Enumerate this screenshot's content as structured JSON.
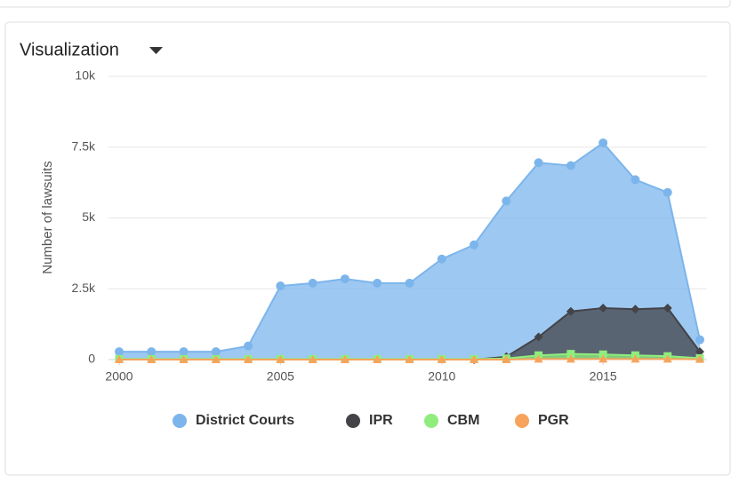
{
  "header": {
    "title": "Visualization"
  },
  "chart_data": {
    "type": "area",
    "y_label": "Number of lawsuits",
    "x": [
      2000,
      2001,
      2002,
      2003,
      2004,
      2005,
      2006,
      2007,
      2008,
      2009,
      2010,
      2011,
      2012,
      2013,
      2014,
      2015,
      2016,
      2017,
      2018
    ],
    "series": [
      {
        "name": "District Courts",
        "color": "#7cb5ec",
        "marker": "circle",
        "values": [
          280,
          280,
          280,
          280,
          480,
          2600,
          2700,
          2850,
          2700,
          2700,
          3550,
          4050,
          5600,
          6950,
          6850,
          7650,
          6350,
          5900,
          700
        ]
      },
      {
        "name": "IPR",
        "color": "#434348",
        "marker": "diamond",
        "values": [
          null,
          null,
          null,
          null,
          null,
          null,
          null,
          null,
          null,
          null,
          null,
          0,
          100,
          800,
          1700,
          1820,
          1780,
          1820,
          280
        ]
      },
      {
        "name": "CBM",
        "color": "#90ed7d",
        "marker": "square",
        "values": [
          20,
          20,
          20,
          20,
          20,
          20,
          20,
          20,
          20,
          20,
          20,
          20,
          40,
          150,
          200,
          180,
          150,
          120,
          50
        ]
      },
      {
        "name": "PGR",
        "color": "#f7a35c",
        "marker": "triangle",
        "values": [
          0,
          0,
          0,
          0,
          0,
          0,
          0,
          0,
          0,
          0,
          0,
          0,
          0,
          20,
          20,
          20,
          20,
          20,
          10
        ]
      }
    ],
    "xlim": [
      2000,
      2018
    ],
    "xticks": [
      2000,
      2005,
      2010,
      2015
    ],
    "ylim": [
      0,
      10000
    ],
    "yticks": [
      0,
      {
        "value": 2500,
        "label": "2.5k"
      },
      {
        "value": 5000,
        "label": "5k"
      },
      {
        "value": 7500,
        "label": "7.5k"
      },
      {
        "value": 10000,
        "label": "10k"
      }
    ],
    "grid": true,
    "legend": "bottom"
  }
}
